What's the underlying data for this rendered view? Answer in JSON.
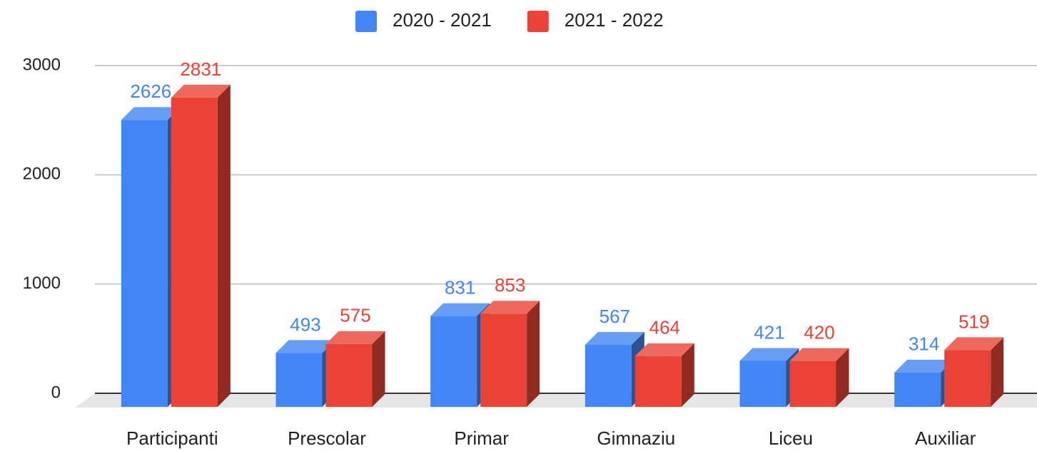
{
  "chart_data": {
    "type": "bar3d",
    "categories": [
      "Participanti",
      "Prescolar",
      "Primar",
      "Gimnaziu",
      "Liceu",
      "Auxiliar"
    ],
    "series": [
      {
        "name": "2020 - 2021",
        "color": "#4285f4",
        "values": [
          2626,
          493,
          831,
          567,
          421,
          314
        ]
      },
      {
        "name": "2021 - 2022",
        "color": "#ea4335",
        "values": [
          2831,
          575,
          853,
          464,
          420,
          519
        ]
      }
    ],
    "ylim": [
      0,
      3000
    ],
    "yticks": [
      0,
      1000,
      2000,
      3000
    ],
    "grid": true,
    "legend": "top"
  }
}
